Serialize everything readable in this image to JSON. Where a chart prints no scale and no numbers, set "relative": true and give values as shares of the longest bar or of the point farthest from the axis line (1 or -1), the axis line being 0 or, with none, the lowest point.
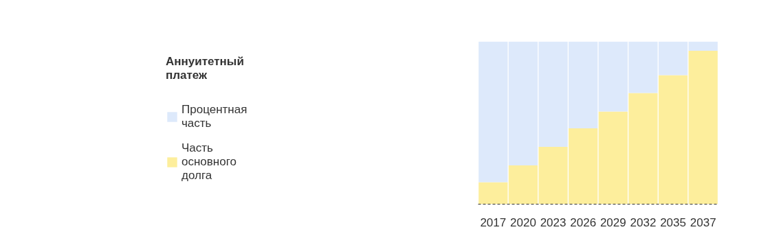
{
  "chart_data": {
    "type": "bar",
    "stacked": true,
    "relative": true,
    "legend_title": "Аннуитетный платеж",
    "legend": "left",
    "grid": false,
    "categories": [
      "2017",
      "2020",
      "2023",
      "2026",
      "2029",
      "2032",
      "2035",
      "2037"
    ],
    "series": [
      {
        "name": "Часть основного долга",
        "color": "#fdee9c",
        "values": [
          0.135,
          0.238,
          0.352,
          0.466,
          0.57,
          0.684,
          0.793,
          0.943
        ]
      },
      {
        "name": "Процентная часть",
        "color": "#dde9fb",
        "values": [
          0.865,
          0.762,
          0.648,
          0.534,
          0.43,
          0.316,
          0.207,
          0.057
        ]
      }
    ]
  }
}
